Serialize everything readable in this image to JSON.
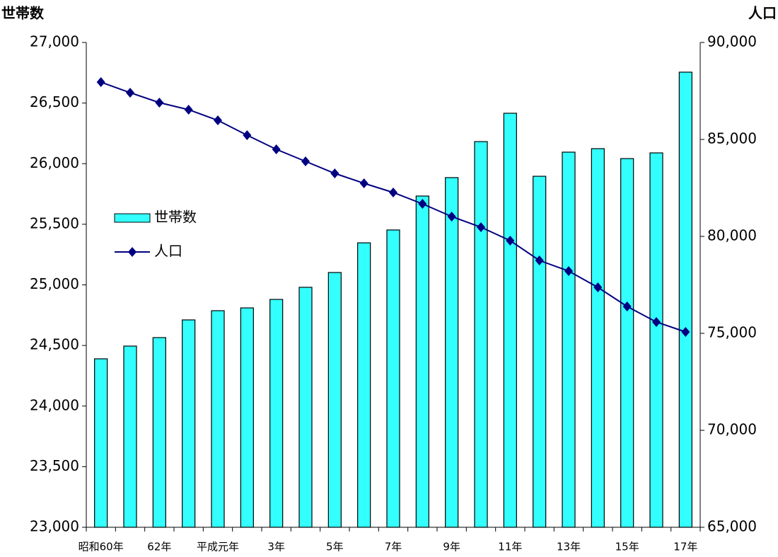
{
  "chart_data": {
    "type": "bar_line",
    "y_label": "世帯数",
    "y2_label": "人口",
    "categories": [
      "昭和60年",
      null,
      "62年",
      null,
      "平成元年",
      null,
      "3年",
      null,
      "5年",
      null,
      "7年",
      null,
      "9年",
      null,
      "11年",
      null,
      "13年",
      null,
      "15年",
      null,
      "17年"
    ],
    "series": [
      {
        "name": "世帯数",
        "type": "bar",
        "color": "#33ffff",
        "axis": "y",
        "values": [
          24390,
          24495,
          24565,
          24711,
          24787,
          24810,
          24880,
          24980,
          25102,
          25347,
          25453,
          25733,
          25885,
          26182,
          26416,
          25896,
          26095,
          26124,
          26042,
          26089,
          26755
        ]
      },
      {
        "name": "人口",
        "type": "line",
        "color": "#000080",
        "axis": "y2",
        "values": [
          87956,
          87409,
          86898,
          86533,
          85985,
          85219,
          84489,
          83869,
          83248,
          82737,
          82263,
          81679,
          81022,
          80474,
          79781,
          78759,
          78212,
          77372,
          76387,
          75584,
          75073
        ]
      }
    ],
    "ylim": [
      23000,
      27000
    ],
    "yticks": [
      {
        "value": 23000,
        "label": "23,000"
      },
      {
        "value": 23500,
        "label": "23,500"
      },
      {
        "value": 24000,
        "label": "24,000"
      },
      {
        "value": 24500,
        "label": "24,500"
      },
      {
        "value": 25000,
        "label": "25,000"
      },
      {
        "value": 25500,
        "label": "25,500"
      },
      {
        "value": 26000,
        "label": "26,000"
      },
      {
        "value": 26500,
        "label": "26,500"
      },
      {
        "value": 27000,
        "label": "27,000"
      }
    ],
    "y2lim": [
      65000,
      90000
    ],
    "y2ticks": [
      {
        "value": 65000,
        "label": "65,000"
      },
      {
        "value": 70000,
        "label": "70,000"
      },
      {
        "value": 75000,
        "label": "75,000"
      },
      {
        "value": 80000,
        "label": "80,000"
      },
      {
        "value": 85000,
        "label": "85,000"
      },
      {
        "value": 90000,
        "label": "90,000"
      }
    ],
    "grid": false
  }
}
